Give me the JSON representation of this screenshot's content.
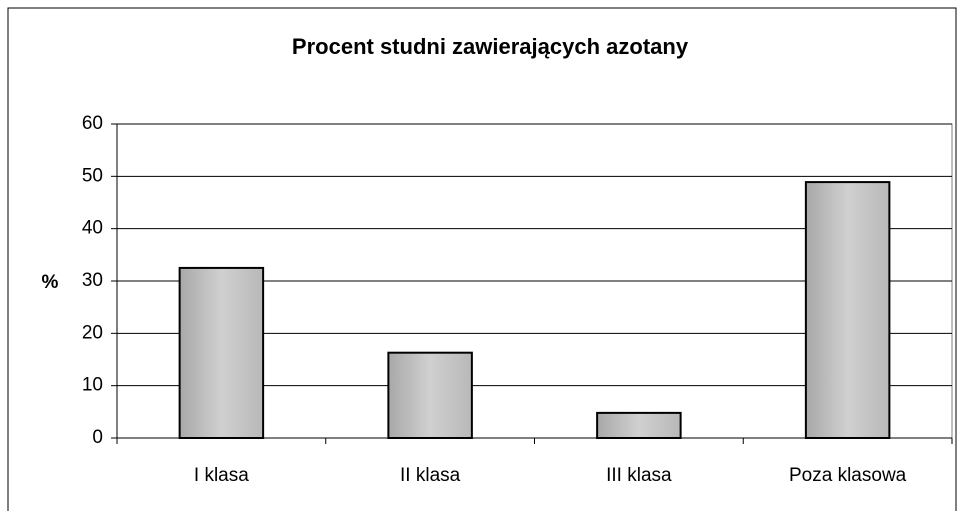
{
  "chart_data": {
    "type": "bar",
    "title": "Procent studni zawierających azotany",
    "y_label": "%",
    "categories": [
      "I klasa",
      "II klasa",
      "III klasa",
      "Poza klasowa"
    ],
    "values": [
      32.5,
      16.3,
      4.8,
      48.9
    ],
    "color": "#c0c0c0",
    "ylim": [
      0,
      60
    ],
    "yticks": [
      0,
      10,
      20,
      30,
      40,
      50,
      60
    ],
    "grid": true
  }
}
